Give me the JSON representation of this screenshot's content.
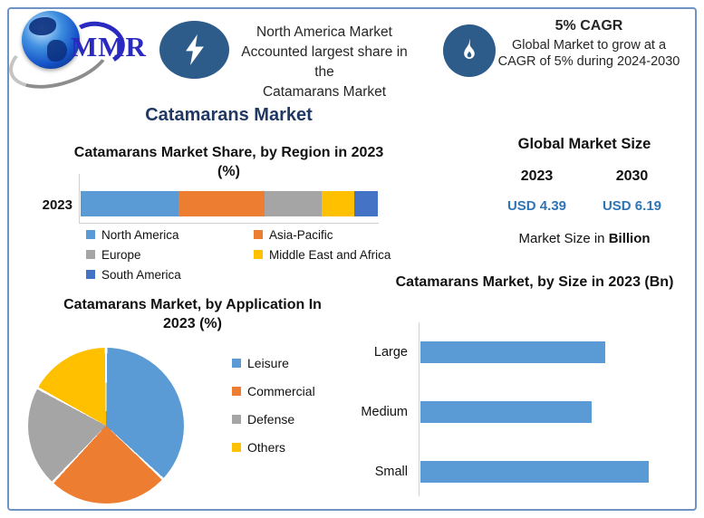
{
  "header": {
    "logo": {
      "text": "MMR"
    },
    "highlight": {
      "lines": [
        "North America Market",
        "Accounted largest share in the",
        "Catamarans Market"
      ]
    },
    "cagr": {
      "title": "5% CAGR",
      "lines": [
        "Global Market to grow at a",
        "CAGR of 5% during 2024-2030"
      ]
    }
  },
  "page_title": "Catamarans Market",
  "market_size": {
    "title": "Global Market Size",
    "columns": [
      {
        "year": "2023",
        "value": "USD 4.39"
      },
      {
        "year": "2030",
        "value": "USD 6.19"
      }
    ],
    "note_prefix": "Market Size in ",
    "note_bold": "Billion"
  },
  "colors": {
    "navy_title": "#1F3864",
    "value_blue": "#2E75B6",
    "icon_circle": "#2E5C8A",
    "frame_border": "#6f94c4"
  },
  "chart_data": [
    {
      "type": "bar",
      "variant": "stacked-horizontal",
      "title": "Catamarans Market Share, by Region in 2023",
      "subtitle": "(%)",
      "row_label": "2023",
      "categories": [
        "North America",
        "Asia-Pacific",
        "Europe",
        "Middle East and Africa",
        "South America"
      ],
      "values_pct": [
        33,
        29,
        19,
        11,
        8
      ],
      "colors": [
        "#5B9BD5",
        "#ED7D31",
        "#A5A5A5",
        "#FFC000",
        "#4472C4"
      ],
      "legend_order": [
        0,
        2,
        4,
        1,
        3
      ],
      "value_axis": "unlabeled",
      "legend_position": "bottom"
    },
    {
      "type": "pie",
      "title": "Catamarans Market, by Application In 2023 (%)",
      "title_lines": [
        "Catamarans Market, by Application In",
        "2023 (%)"
      ],
      "categories": [
        "Leisure",
        "Commercial",
        "Defense",
        "Others"
      ],
      "values_pct": [
        37,
        25,
        21,
        17
      ],
      "colors": [
        "#5B9BD5",
        "#ED7D31",
        "#A5A5A5",
        "#FFC000"
      ],
      "start_angle_deg": 0,
      "legend_position": "right"
    },
    {
      "type": "bar",
      "variant": "horizontal",
      "title": "Catamarans Market, by Size in 2023 (Bn)",
      "categories": [
        "Large",
        "Medium",
        "Small"
      ],
      "values_relative_to_max": [
        0.81,
        0.75,
        1.0
      ],
      "bar_color": "#5B9BD5",
      "value_axis": "unlabeled",
      "legend_position": "none"
    }
  ]
}
